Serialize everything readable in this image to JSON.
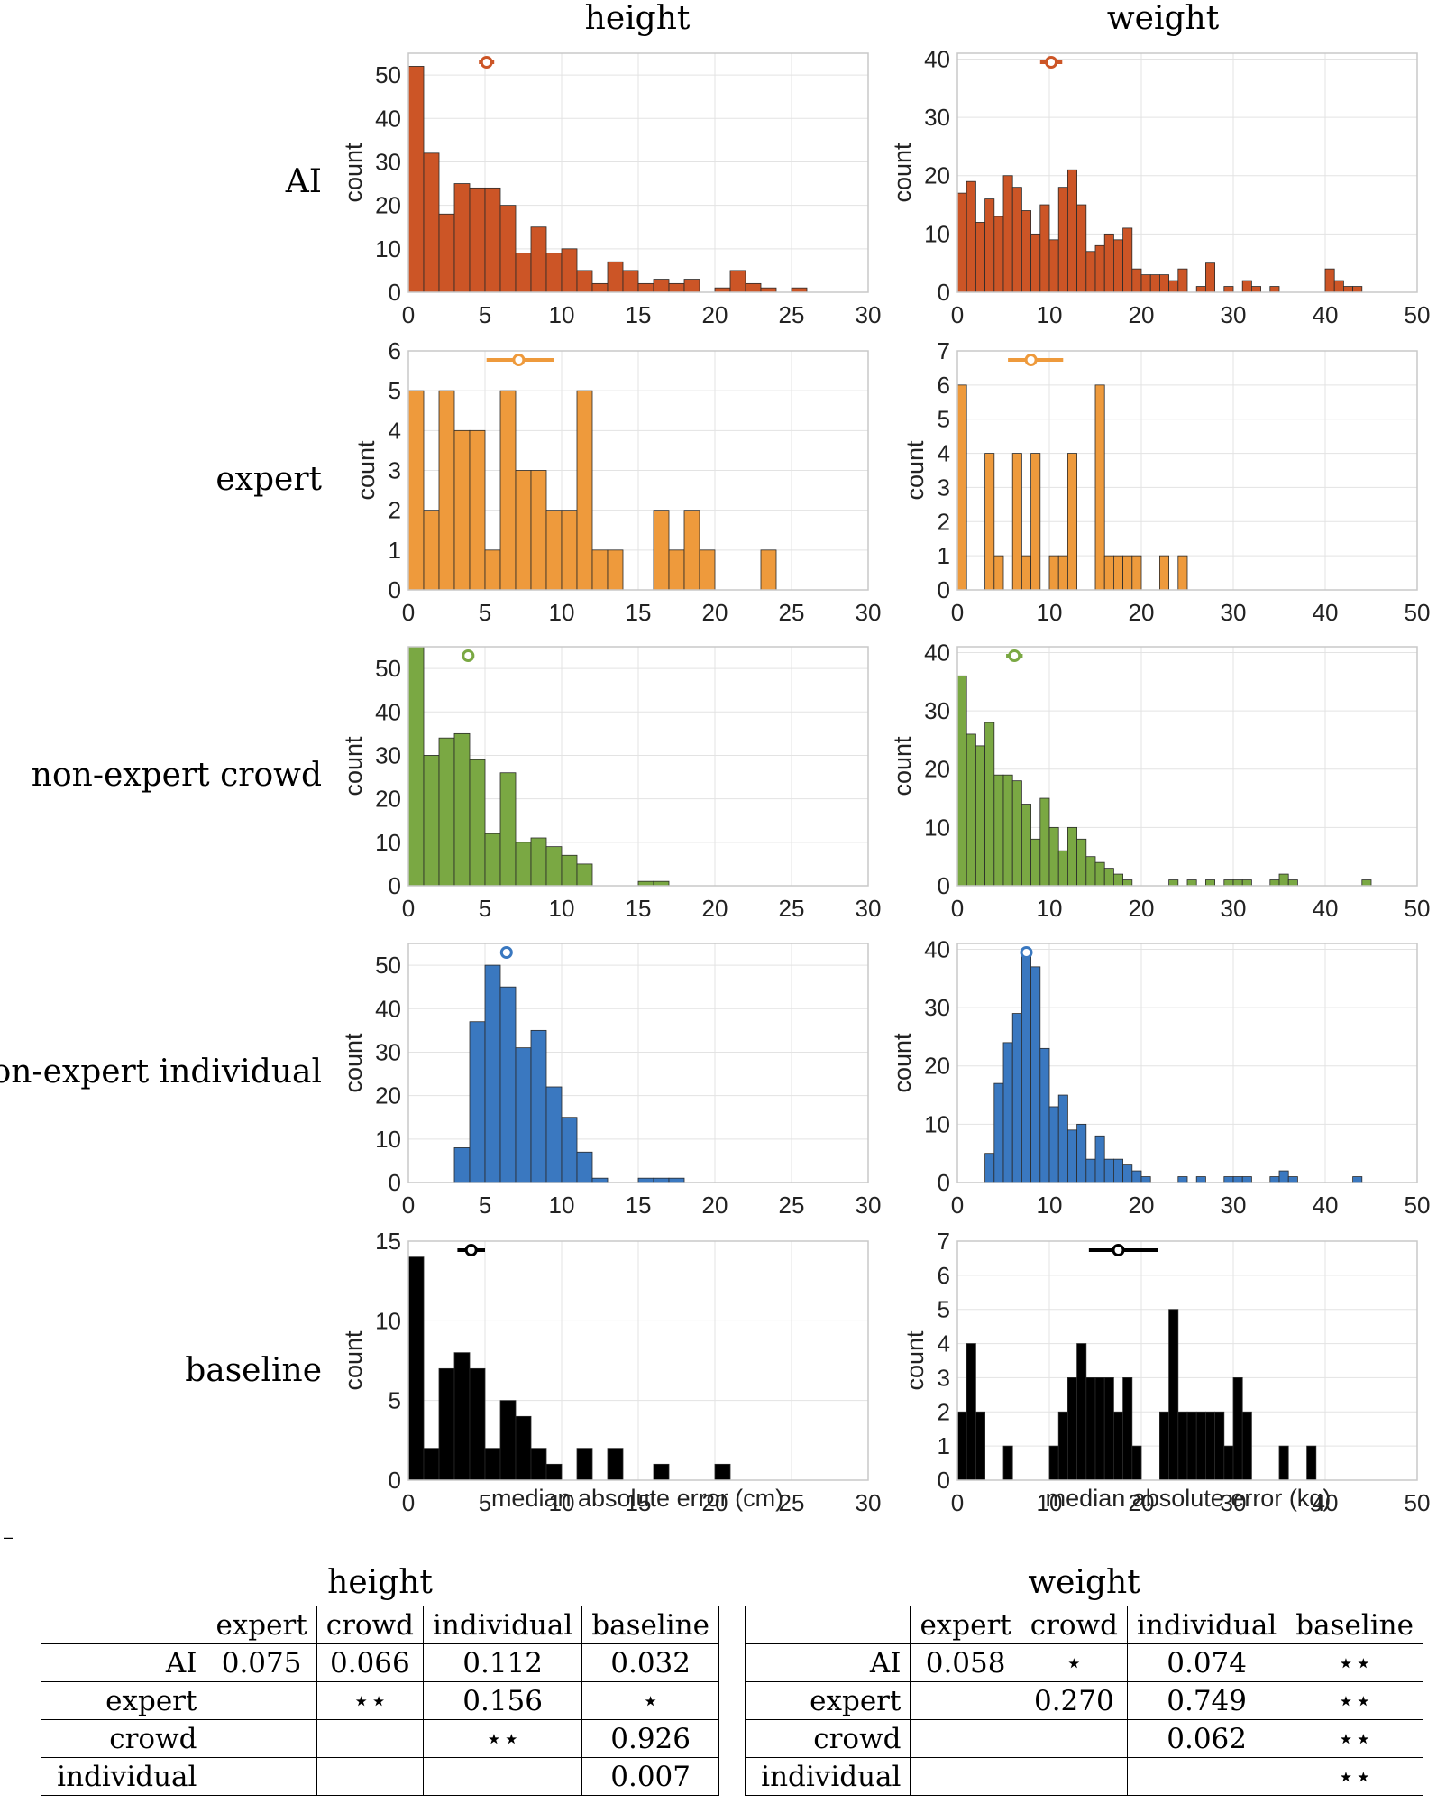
{
  "chart_data": {
    "type": "bar",
    "title_columns": [
      "height",
      "weight"
    ],
    "row_labels": [
      "AI",
      "expert",
      "non-expert crowd",
      "non-expert individual",
      "baseline"
    ],
    "ylabel": "count",
    "xlabels": [
      "median absolute error (cm)",
      "median absolute error (kg)"
    ],
    "colors": {
      "AI": "#cc5526",
      "expert": "#ee9a3c",
      "non-expert crowd": "#7aa843",
      "non-expert individual": "#3a78c0",
      "baseline": "#000000"
    },
    "panels": [
      {
        "id": "height-AI",
        "row": "AI",
        "column": "height",
        "xlim": [
          0,
          30
        ],
        "xticks": [
          0,
          5,
          10,
          15,
          20,
          25,
          30
        ],
        "ylim": [
          0,
          55
        ],
        "yticks": [
          0,
          10,
          20,
          30,
          40,
          50
        ],
        "bin_width": 1,
        "counts": [
          52,
          32,
          18,
          25,
          24,
          24,
          20,
          9,
          15,
          9,
          10,
          5,
          2,
          7,
          5,
          2,
          3,
          2,
          3,
          0,
          1,
          5,
          2,
          1,
          0,
          1,
          0,
          0,
          0,
          0
        ],
        "median_marker": {
          "value": 5.1,
          "ci": [
            4.6,
            5.6
          ]
        }
      },
      {
        "id": "weight-AI",
        "row": "AI",
        "column": "weight",
        "xlim": [
          0,
          50
        ],
        "xticks": [
          0,
          10,
          20,
          30,
          40,
          50
        ],
        "ylim": [
          0,
          41
        ],
        "yticks": [
          0,
          10,
          20,
          30,
          40
        ],
        "bin_width": 1,
        "counts": [
          17,
          19,
          12,
          16,
          13,
          20,
          18,
          14,
          10,
          15,
          9,
          18,
          21,
          15,
          7,
          8,
          10,
          9,
          11,
          4,
          3,
          3,
          3,
          2,
          4,
          0,
          1,
          5,
          0,
          1,
          0,
          2,
          1,
          0,
          1,
          0,
          0,
          0,
          0,
          0,
          4,
          2,
          1,
          1,
          0,
          0,
          0,
          0,
          0,
          0
        ],
        "median_marker": {
          "value": 10.2,
          "ci": [
            9.0,
            11.4
          ]
        }
      },
      {
        "id": "height-expert",
        "row": "expert",
        "column": "height",
        "xlim": [
          0,
          30
        ],
        "xticks": [
          0,
          5,
          10,
          15,
          20,
          25,
          30
        ],
        "ylim": [
          0,
          6
        ],
        "yticks": [
          0,
          1,
          2,
          3,
          4,
          5,
          6
        ],
        "bin_width": 1,
        "counts": [
          5,
          2,
          5,
          4,
          4,
          1,
          5,
          3,
          3,
          2,
          2,
          5,
          1,
          1,
          0,
          0,
          2,
          1,
          2,
          1,
          0,
          0,
          0,
          1,
          0,
          0,
          0,
          0,
          0,
          0
        ],
        "median_marker": {
          "value": 7.2,
          "ci": [
            5.1,
            9.5
          ]
        }
      },
      {
        "id": "weight-expert",
        "row": "expert",
        "column": "weight",
        "xlim": [
          0,
          50
        ],
        "xticks": [
          0,
          10,
          20,
          30,
          40,
          50
        ],
        "ylim": [
          0,
          7
        ],
        "yticks": [
          0,
          1,
          2,
          3,
          4,
          5,
          6,
          7
        ],
        "bin_width": 1,
        "counts": [
          6,
          0,
          0,
          4,
          1,
          0,
          4,
          1,
          4,
          0,
          1,
          1,
          4,
          0,
          0,
          6,
          1,
          1,
          1,
          1,
          0,
          0,
          1,
          0,
          1,
          0,
          0,
          0,
          0,
          0,
          0,
          0,
          0,
          0,
          0,
          0,
          0,
          0,
          0,
          0,
          0,
          0,
          0,
          0,
          0,
          0,
          0,
          0,
          0,
          0
        ],
        "median_marker": {
          "value": 8.0,
          "ci": [
            5.5,
            11.5
          ]
        }
      },
      {
        "id": "height-crowd",
        "row": "non-expert crowd",
        "column": "height",
        "xlim": [
          0,
          30
        ],
        "xticks": [
          0,
          5,
          10,
          15,
          20,
          25,
          30
        ],
        "ylim": [
          0,
          55
        ],
        "yticks": [
          0,
          10,
          20,
          30,
          40,
          50
        ],
        "bin_width": 1,
        "counts": [
          55,
          30,
          34,
          35,
          29,
          12,
          26,
          10,
          11,
          9,
          7,
          5,
          0,
          0,
          0,
          1,
          1,
          0,
          0,
          0,
          0,
          0,
          0,
          0,
          0,
          0,
          0,
          0,
          0,
          0
        ],
        "median_marker": {
          "value": 3.9,
          "ci": [
            3.5,
            4.3
          ]
        }
      },
      {
        "id": "weight-crowd",
        "row": "non-expert crowd",
        "column": "weight",
        "xlim": [
          0,
          50
        ],
        "xticks": [
          0,
          10,
          20,
          30,
          40,
          50
        ],
        "ylim": [
          0,
          41
        ],
        "yticks": [
          0,
          10,
          20,
          30,
          40
        ],
        "bin_width": 1,
        "counts": [
          36,
          26,
          24,
          28,
          19,
          19,
          18,
          14,
          8,
          15,
          10,
          6,
          10,
          8,
          5,
          4,
          3,
          2,
          1,
          0,
          0,
          0,
          0,
          1,
          0,
          1,
          0,
          1,
          0,
          1,
          1,
          1,
          0,
          0,
          1,
          2,
          1,
          0,
          0,
          0,
          0,
          0,
          0,
          0,
          1,
          0,
          0,
          0,
          0,
          0
        ],
        "median_marker": {
          "value": 6.2,
          "ci": [
            5.3,
            7.1
          ]
        }
      },
      {
        "id": "height-individual",
        "row": "non-expert individual",
        "column": "height",
        "xlim": [
          0,
          30
        ],
        "xticks": [
          0,
          5,
          10,
          15,
          20,
          25,
          30
        ],
        "ylim": [
          0,
          55
        ],
        "yticks": [
          0,
          10,
          20,
          30,
          40,
          50
        ],
        "bin_width": 1,
        "counts": [
          0,
          0,
          0,
          8,
          37,
          50,
          45,
          31,
          35,
          22,
          15,
          7,
          1,
          0,
          0,
          1,
          1,
          1,
          0,
          0,
          0,
          0,
          0,
          0,
          0,
          0,
          0,
          0,
          0,
          0
        ],
        "median_marker": {
          "value": 6.4,
          "ci": [
            6.1,
            6.7
          ]
        }
      },
      {
        "id": "weight-individual",
        "row": "non-expert individual",
        "column": "weight",
        "xlim": [
          0,
          50
        ],
        "xticks": [
          0,
          10,
          20,
          30,
          40,
          50
        ],
        "ylim": [
          0,
          41
        ],
        "yticks": [
          0,
          10,
          20,
          30,
          40
        ],
        "bin_width": 1,
        "counts": [
          0,
          0,
          0,
          5,
          17,
          24,
          29,
          40,
          37,
          23,
          13,
          15,
          9,
          10,
          4,
          8,
          4,
          4,
          3,
          2,
          1,
          0,
          0,
          0,
          1,
          0,
          1,
          0,
          0,
          1,
          1,
          1,
          0,
          0,
          1,
          2,
          1,
          0,
          0,
          0,
          0,
          0,
          0,
          1,
          0,
          0,
          0,
          0,
          0,
          0
        ],
        "median_marker": {
          "value": 7.5,
          "ci": [
            7.1,
            7.9
          ]
        }
      },
      {
        "id": "height-baseline",
        "row": "baseline",
        "column": "height",
        "xlim": [
          0,
          30
        ],
        "xticks": [
          0,
          5,
          10,
          15,
          20,
          25,
          30
        ],
        "ylim": [
          0,
          15
        ],
        "yticks": [
          0,
          5,
          10,
          15
        ],
        "bin_width": 1,
        "counts": [
          14,
          2,
          7,
          8,
          7,
          2,
          5,
          4,
          2,
          1,
          0,
          2,
          0,
          2,
          0,
          0,
          1,
          0,
          0,
          0,
          1,
          0,
          0,
          0,
          0,
          0,
          0,
          0,
          0,
          0
        ],
        "median_marker": {
          "value": 4.1,
          "ci": [
            3.2,
            5.0
          ]
        }
      },
      {
        "id": "weight-baseline",
        "row": "baseline",
        "column": "weight",
        "xlim": [
          0,
          50
        ],
        "xticks": [
          0,
          10,
          20,
          30,
          40,
          50
        ],
        "ylim": [
          0,
          7
        ],
        "yticks": [
          0,
          1,
          2,
          3,
          4,
          5,
          6,
          7
        ],
        "bin_width": 1,
        "counts": [
          2,
          4,
          2,
          0,
          0,
          1,
          0,
          0,
          0,
          0,
          1,
          2,
          3,
          4,
          3,
          3,
          3,
          2,
          3,
          1,
          0,
          0,
          2,
          5,
          2,
          2,
          2,
          2,
          2,
          1,
          3,
          2,
          0,
          0,
          0,
          1,
          0,
          0,
          1,
          0,
          0,
          0,
          0,
          0,
          0,
          0,
          0,
          0,
          0,
          0
        ],
        "median_marker": {
          "value": 17.5,
          "ci": [
            14.3,
            21.8
          ]
        }
      }
    ]
  },
  "dash_mark": "–",
  "tables": [
    {
      "title": "height",
      "headers": [
        "",
        "expert",
        "crowd",
        "individual",
        "baseline"
      ],
      "rows": [
        {
          "label": "AI",
          "cells": [
            "0.075",
            "0.066",
            "0.112",
            "0.032"
          ]
        },
        {
          "label": "expert",
          "cells": [
            "",
            "⋆⋆",
            "0.156",
            "⋆"
          ]
        },
        {
          "label": "crowd",
          "cells": [
            "",
            "",
            "⋆⋆",
            "0.926"
          ]
        },
        {
          "label": "individual",
          "cells": [
            "",
            "",
            "",
            "0.007"
          ]
        }
      ]
    },
    {
      "title": "weight",
      "headers": [
        "",
        "expert",
        "crowd",
        "individual",
        "baseline"
      ],
      "rows": [
        {
          "label": "AI",
          "cells": [
            "0.058",
            "⋆",
            "0.074",
            "⋆⋆"
          ]
        },
        {
          "label": "expert",
          "cells": [
            "",
            "0.270",
            "0.749",
            "⋆⋆"
          ]
        },
        {
          "label": "crowd",
          "cells": [
            "",
            "",
            "0.062",
            "⋆⋆"
          ]
        },
        {
          "label": "individual",
          "cells": [
            "",
            "",
            "",
            "⋆⋆"
          ]
        }
      ]
    }
  ]
}
